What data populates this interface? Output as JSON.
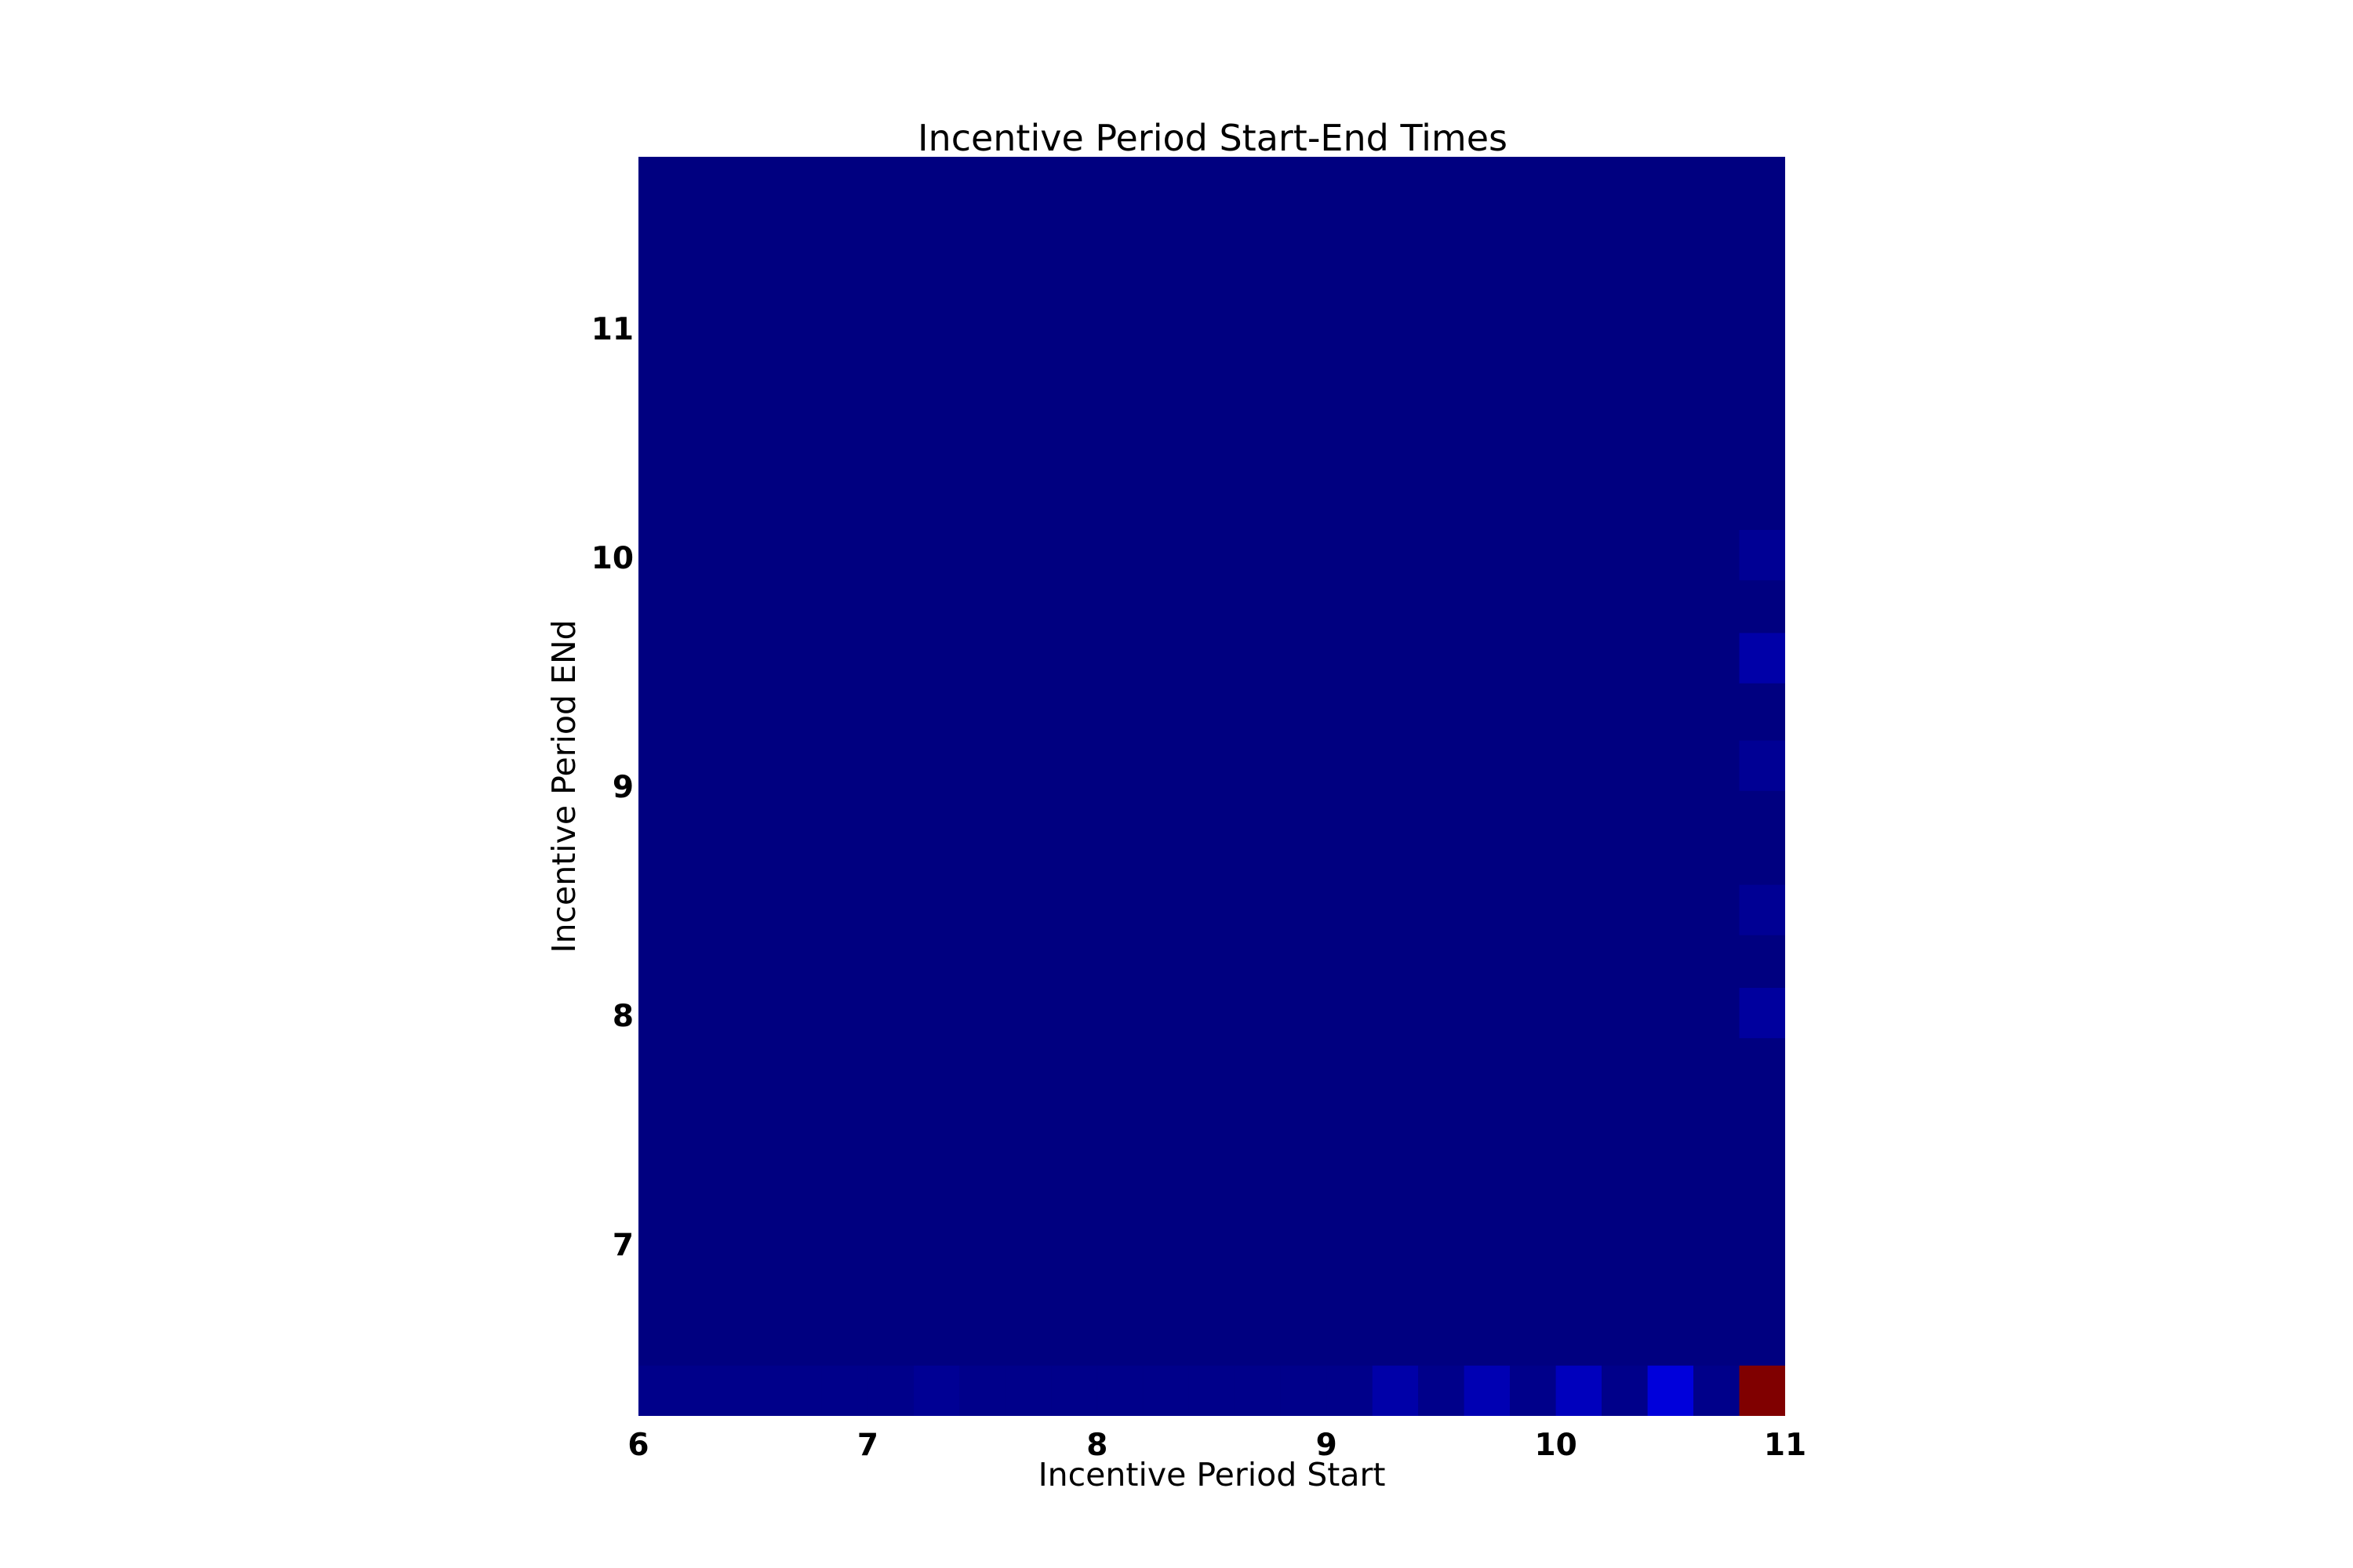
{
  "chart_data": {
    "type": "heatmap",
    "title": "Incentive Period Start-End Times",
    "xlabel": "Incentive Period Start",
    "ylabel": "Incentive Period ENd",
    "xlim": [
      6,
      11
    ],
    "ylim": [
      6.25,
      11.75
    ],
    "x_ticks": [
      "6",
      "7",
      "8",
      "9",
      "10",
      "11"
    ],
    "y_ticks": [
      "7",
      "8",
      "9",
      "10",
      "11"
    ],
    "colormap": "jet",
    "colorbar": false,
    "grid": false,
    "background_value": 0,
    "value_range": [
      0,
      1
    ],
    "cells": [
      {
        "x": [
          6.0,
          6.2
        ],
        "y": [
          6.25,
          6.47
        ],
        "value": 0.01
      },
      {
        "x": [
          6.2,
          6.4
        ],
        "y": [
          6.25,
          6.47
        ],
        "value": 0.01
      },
      {
        "x": [
          6.4,
          6.6
        ],
        "y": [
          6.25,
          6.47
        ],
        "value": 0.01
      },
      {
        "x": [
          6.6,
          6.8
        ],
        "y": [
          6.25,
          6.47
        ],
        "value": 0.01
      },
      {
        "x": [
          6.8,
          7.0
        ],
        "y": [
          6.25,
          6.47
        ],
        "value": 0.01
      },
      {
        "x": [
          7.0,
          7.2
        ],
        "y": [
          6.25,
          6.47
        ],
        "value": 0.01
      },
      {
        "x": [
          7.2,
          7.4
        ],
        "y": [
          6.25,
          6.47
        ],
        "value": 0.02
      },
      {
        "x": [
          7.4,
          7.6
        ],
        "y": [
          6.25,
          6.47
        ],
        "value": 0.01
      },
      {
        "x": [
          7.6,
          7.8
        ],
        "y": [
          6.25,
          6.47
        ],
        "value": 0.01
      },
      {
        "x": [
          7.8,
          8.0
        ],
        "y": [
          6.25,
          6.47
        ],
        "value": 0.01
      },
      {
        "x": [
          8.0,
          8.2
        ],
        "y": [
          6.25,
          6.47
        ],
        "value": 0.01
      },
      {
        "x": [
          8.2,
          8.4
        ],
        "y": [
          6.25,
          6.47
        ],
        "value": 0.01
      },
      {
        "x": [
          8.4,
          8.6
        ],
        "y": [
          6.25,
          6.47
        ],
        "value": 0.01
      },
      {
        "x": [
          8.6,
          8.8
        ],
        "y": [
          6.25,
          6.47
        ],
        "value": 0.01
      },
      {
        "x": [
          8.8,
          9.0
        ],
        "y": [
          6.25,
          6.47
        ],
        "value": 0.01
      },
      {
        "x": [
          9.0,
          9.2
        ],
        "y": [
          6.25,
          6.47
        ],
        "value": 0.01
      },
      {
        "x": [
          9.2,
          9.4
        ],
        "y": [
          6.25,
          6.47
        ],
        "value": 0.04
      },
      {
        "x": [
          9.4,
          9.6
        ],
        "y": [
          6.25,
          6.47
        ],
        "value": 0.01
      },
      {
        "x": [
          9.6,
          9.8
        ],
        "y": [
          6.25,
          6.47
        ],
        "value": 0.05
      },
      {
        "x": [
          9.8,
          10.0
        ],
        "y": [
          6.25,
          6.47
        ],
        "value": 0.01
      },
      {
        "x": [
          10.0,
          10.2
        ],
        "y": [
          6.25,
          6.47
        ],
        "value": 0.06
      },
      {
        "x": [
          10.2,
          10.4
        ],
        "y": [
          6.25,
          6.47
        ],
        "value": 0.01
      },
      {
        "x": [
          10.4,
          10.6
        ],
        "y": [
          6.25,
          6.47
        ],
        "value": 0.09
      },
      {
        "x": [
          10.6,
          10.8
        ],
        "y": [
          6.25,
          6.47
        ],
        "value": 0.01
      },
      {
        "x": [
          10.8,
          11.0
        ],
        "y": [
          6.25,
          6.47
        ],
        "value": 1.0
      },
      {
        "x": [
          10.8,
          11.0
        ],
        "y": [
          7.9,
          8.12
        ],
        "value": 0.03
      },
      {
        "x": [
          10.8,
          11.0
        ],
        "y": [
          8.35,
          8.57
        ],
        "value": 0.02
      },
      {
        "x": [
          10.8,
          11.0
        ],
        "y": [
          8.98,
          9.2
        ],
        "value": 0.02
      },
      {
        "x": [
          10.8,
          11.0
        ],
        "y": [
          9.45,
          9.67
        ],
        "value": 0.04
      },
      {
        "x": [
          10.8,
          11.0
        ],
        "y": [
          9.9,
          10.12
        ],
        "value": 0.02
      }
    ]
  }
}
